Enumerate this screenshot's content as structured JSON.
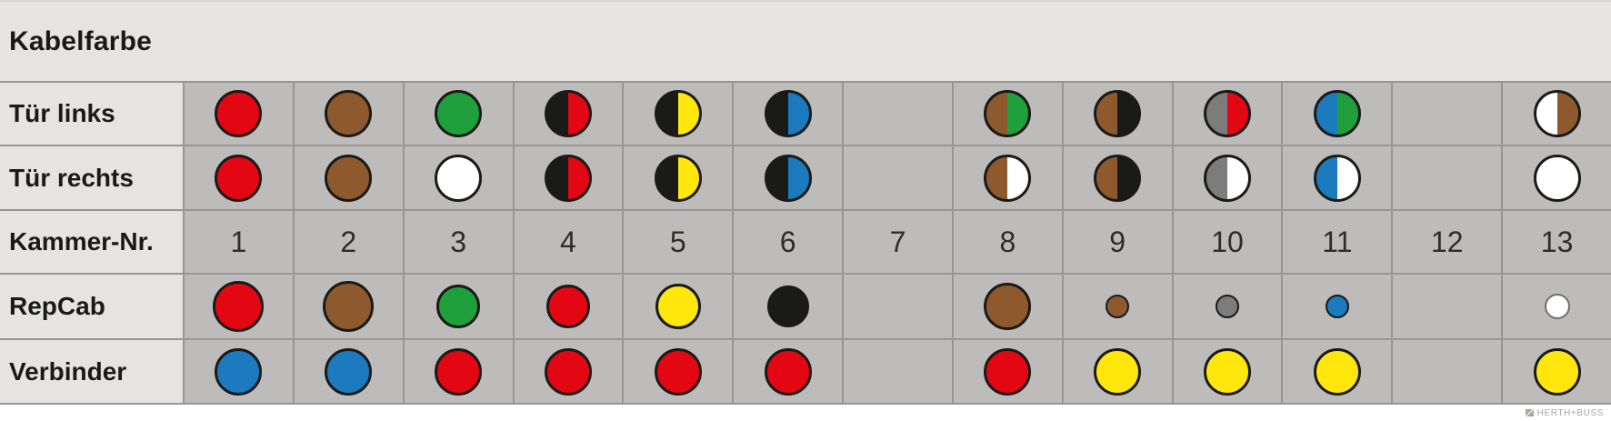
{
  "title": "Kabelfarbe",
  "watermark": {
    "text": "HERTH+BUSS"
  },
  "palette": {
    "red": "#e30613",
    "brown": "#8e5a2d",
    "green": "#1fa03c",
    "blue": "#1b7bbe",
    "yellow": "#ffe60d",
    "black": "#1a1a18",
    "white": "#ffffff",
    "gray": "#7c7c7c"
  },
  "dot_default_size": 46,
  "rows": [
    {
      "key": "tuer-links",
      "label": "Tür links",
      "type": "dots",
      "cells": [
        {
          "fill": "red"
        },
        {
          "fill": "brown"
        },
        {
          "fill": "green"
        },
        {
          "left": "black",
          "right": "red"
        },
        {
          "left": "black",
          "right": "yellow"
        },
        {
          "left": "black",
          "right": "blue"
        },
        null,
        {
          "left": "brown",
          "right": "green"
        },
        {
          "left": "brown",
          "right": "black"
        },
        {
          "left": "gray",
          "right": "red"
        },
        {
          "left": "blue",
          "right": "green"
        },
        null,
        {
          "left": "white",
          "right": "brown"
        }
      ]
    },
    {
      "key": "tuer-rechts",
      "label": "Tür rechts",
      "type": "dots",
      "cells": [
        {
          "fill": "red"
        },
        {
          "fill": "brown"
        },
        {
          "fill": "white"
        },
        {
          "left": "black",
          "right": "red"
        },
        {
          "left": "black",
          "right": "yellow"
        },
        {
          "left": "black",
          "right": "blue"
        },
        null,
        {
          "left": "brown",
          "right": "white"
        },
        {
          "left": "brown",
          "right": "black"
        },
        {
          "left": "gray",
          "right": "white"
        },
        {
          "left": "blue",
          "right": "white"
        },
        null,
        {
          "fill": "white"
        }
      ]
    },
    {
      "key": "kammer-nr",
      "label": "Kammer-Nr.",
      "type": "numbers",
      "cells": [
        "1",
        "2",
        "3",
        "4",
        "5",
        "6",
        "7",
        "8",
        "9",
        "10",
        "11",
        "12",
        "13"
      ]
    },
    {
      "key": "repcab",
      "label": "RepCab",
      "type": "dots",
      "cells": [
        {
          "fill": "red",
          "size": 50
        },
        {
          "fill": "brown",
          "size": 50
        },
        {
          "fill": "green",
          "size": 42
        },
        {
          "fill": "red",
          "size": 42
        },
        {
          "fill": "yellow",
          "size": 44
        },
        {
          "fill": "black",
          "size": 40
        },
        null,
        {
          "fill": "brown",
          "size": 46
        },
        {
          "fill": "brown",
          "size": 22
        },
        {
          "fill": "gray",
          "size": 22
        },
        {
          "fill": "blue",
          "size": 22
        },
        null,
        {
          "fill": "white",
          "size": 24,
          "border": "#6f6f6f"
        }
      ]
    },
    {
      "key": "verbinder",
      "label": "Verbinder",
      "type": "dots",
      "cells": [
        {
          "fill": "blue"
        },
        {
          "fill": "blue"
        },
        {
          "fill": "red"
        },
        {
          "fill": "red"
        },
        {
          "fill": "red"
        },
        {
          "fill": "red"
        },
        null,
        {
          "fill": "red"
        },
        {
          "fill": "yellow"
        },
        {
          "fill": "yellow"
        },
        {
          "fill": "yellow"
        },
        null,
        {
          "fill": "yellow"
        }
      ]
    }
  ]
}
